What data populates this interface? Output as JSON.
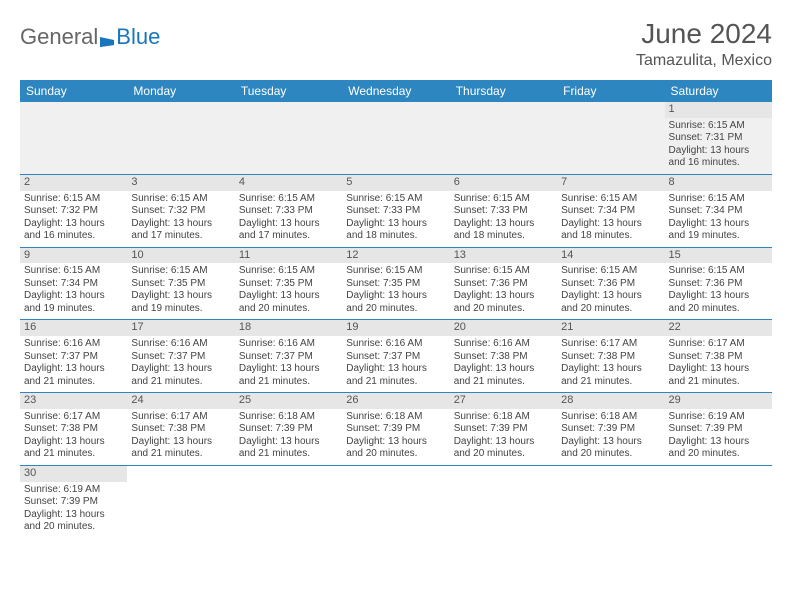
{
  "brand": {
    "part1": "General",
    "part2": "Blue"
  },
  "title": "June 2024",
  "location": "Tamazulita, Mexico",
  "colors": {
    "header_bg": "#2e86c1",
    "header_text": "#ffffff",
    "daynum_bg": "#e6e6e6",
    "empty_bg": "#f0f0f0",
    "rule": "#2e86c1",
    "brand_blue": "#1976bd",
    "text": "#444444"
  },
  "fonts": {
    "title_size": 28,
    "location_size": 16,
    "header_size": 12,
    "cell_size": 10
  },
  "weekdays": [
    "Sunday",
    "Monday",
    "Tuesday",
    "Wednesday",
    "Thursday",
    "Friday",
    "Saturday"
  ],
  "weeks": [
    [
      null,
      null,
      null,
      null,
      null,
      null,
      {
        "n": "1",
        "sr": "Sunrise: 6:15 AM",
        "ss": "Sunset: 7:31 PM",
        "d1": "Daylight: 13 hours",
        "d2": "and 16 minutes."
      }
    ],
    [
      {
        "n": "2",
        "sr": "Sunrise: 6:15 AM",
        "ss": "Sunset: 7:32 PM",
        "d1": "Daylight: 13 hours",
        "d2": "and 16 minutes."
      },
      {
        "n": "3",
        "sr": "Sunrise: 6:15 AM",
        "ss": "Sunset: 7:32 PM",
        "d1": "Daylight: 13 hours",
        "d2": "and 17 minutes."
      },
      {
        "n": "4",
        "sr": "Sunrise: 6:15 AM",
        "ss": "Sunset: 7:33 PM",
        "d1": "Daylight: 13 hours",
        "d2": "and 17 minutes."
      },
      {
        "n": "5",
        "sr": "Sunrise: 6:15 AM",
        "ss": "Sunset: 7:33 PM",
        "d1": "Daylight: 13 hours",
        "d2": "and 18 minutes."
      },
      {
        "n": "6",
        "sr": "Sunrise: 6:15 AM",
        "ss": "Sunset: 7:33 PM",
        "d1": "Daylight: 13 hours",
        "d2": "and 18 minutes."
      },
      {
        "n": "7",
        "sr": "Sunrise: 6:15 AM",
        "ss": "Sunset: 7:34 PM",
        "d1": "Daylight: 13 hours",
        "d2": "and 18 minutes."
      },
      {
        "n": "8",
        "sr": "Sunrise: 6:15 AM",
        "ss": "Sunset: 7:34 PM",
        "d1": "Daylight: 13 hours",
        "d2": "and 19 minutes."
      }
    ],
    [
      {
        "n": "9",
        "sr": "Sunrise: 6:15 AM",
        "ss": "Sunset: 7:34 PM",
        "d1": "Daylight: 13 hours",
        "d2": "and 19 minutes."
      },
      {
        "n": "10",
        "sr": "Sunrise: 6:15 AM",
        "ss": "Sunset: 7:35 PM",
        "d1": "Daylight: 13 hours",
        "d2": "and 19 minutes."
      },
      {
        "n": "11",
        "sr": "Sunrise: 6:15 AM",
        "ss": "Sunset: 7:35 PM",
        "d1": "Daylight: 13 hours",
        "d2": "and 20 minutes."
      },
      {
        "n": "12",
        "sr": "Sunrise: 6:15 AM",
        "ss": "Sunset: 7:35 PM",
        "d1": "Daylight: 13 hours",
        "d2": "and 20 minutes."
      },
      {
        "n": "13",
        "sr": "Sunrise: 6:15 AM",
        "ss": "Sunset: 7:36 PM",
        "d1": "Daylight: 13 hours",
        "d2": "and 20 minutes."
      },
      {
        "n": "14",
        "sr": "Sunrise: 6:15 AM",
        "ss": "Sunset: 7:36 PM",
        "d1": "Daylight: 13 hours",
        "d2": "and 20 minutes."
      },
      {
        "n": "15",
        "sr": "Sunrise: 6:15 AM",
        "ss": "Sunset: 7:36 PM",
        "d1": "Daylight: 13 hours",
        "d2": "and 20 minutes."
      }
    ],
    [
      {
        "n": "16",
        "sr": "Sunrise: 6:16 AM",
        "ss": "Sunset: 7:37 PM",
        "d1": "Daylight: 13 hours",
        "d2": "and 21 minutes."
      },
      {
        "n": "17",
        "sr": "Sunrise: 6:16 AM",
        "ss": "Sunset: 7:37 PM",
        "d1": "Daylight: 13 hours",
        "d2": "and 21 minutes."
      },
      {
        "n": "18",
        "sr": "Sunrise: 6:16 AM",
        "ss": "Sunset: 7:37 PM",
        "d1": "Daylight: 13 hours",
        "d2": "and 21 minutes."
      },
      {
        "n": "19",
        "sr": "Sunrise: 6:16 AM",
        "ss": "Sunset: 7:37 PM",
        "d1": "Daylight: 13 hours",
        "d2": "and 21 minutes."
      },
      {
        "n": "20",
        "sr": "Sunrise: 6:16 AM",
        "ss": "Sunset: 7:38 PM",
        "d1": "Daylight: 13 hours",
        "d2": "and 21 minutes."
      },
      {
        "n": "21",
        "sr": "Sunrise: 6:17 AM",
        "ss": "Sunset: 7:38 PM",
        "d1": "Daylight: 13 hours",
        "d2": "and 21 minutes."
      },
      {
        "n": "22",
        "sr": "Sunrise: 6:17 AM",
        "ss": "Sunset: 7:38 PM",
        "d1": "Daylight: 13 hours",
        "d2": "and 21 minutes."
      }
    ],
    [
      {
        "n": "23",
        "sr": "Sunrise: 6:17 AM",
        "ss": "Sunset: 7:38 PM",
        "d1": "Daylight: 13 hours",
        "d2": "and 21 minutes."
      },
      {
        "n": "24",
        "sr": "Sunrise: 6:17 AM",
        "ss": "Sunset: 7:38 PM",
        "d1": "Daylight: 13 hours",
        "d2": "and 21 minutes."
      },
      {
        "n": "25",
        "sr": "Sunrise: 6:18 AM",
        "ss": "Sunset: 7:39 PM",
        "d1": "Daylight: 13 hours",
        "d2": "and 21 minutes."
      },
      {
        "n": "26",
        "sr": "Sunrise: 6:18 AM",
        "ss": "Sunset: 7:39 PM",
        "d1": "Daylight: 13 hours",
        "d2": "and 20 minutes."
      },
      {
        "n": "27",
        "sr": "Sunrise: 6:18 AM",
        "ss": "Sunset: 7:39 PM",
        "d1": "Daylight: 13 hours",
        "d2": "and 20 minutes."
      },
      {
        "n": "28",
        "sr": "Sunrise: 6:18 AM",
        "ss": "Sunset: 7:39 PM",
        "d1": "Daylight: 13 hours",
        "d2": "and 20 minutes."
      },
      {
        "n": "29",
        "sr": "Sunrise: 6:19 AM",
        "ss": "Sunset: 7:39 PM",
        "d1": "Daylight: 13 hours",
        "d2": "and 20 minutes."
      }
    ],
    [
      {
        "n": "30",
        "sr": "Sunrise: 6:19 AM",
        "ss": "Sunset: 7:39 PM",
        "d1": "Daylight: 13 hours",
        "d2": "and 20 minutes."
      },
      null,
      null,
      null,
      null,
      null,
      null
    ]
  ]
}
